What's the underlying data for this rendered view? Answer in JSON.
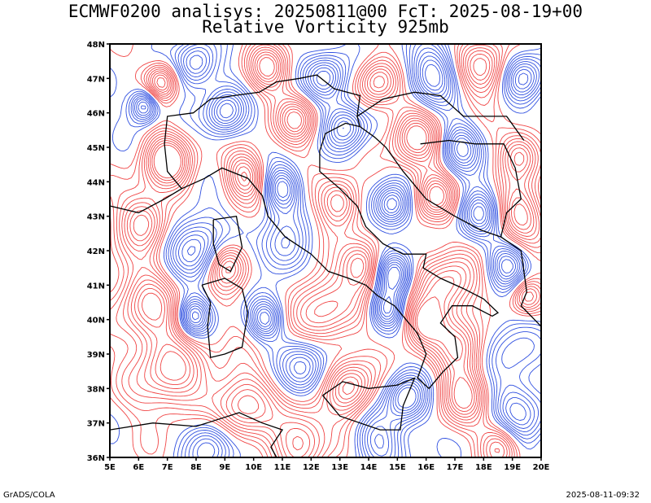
{
  "header": {
    "title_line1": "ECMWF0200 analisys: 20250811@00 FcT: 2025-08-19+00",
    "title_line2": "Relative Vorticity 925mb"
  },
  "map": {
    "lon_labels": [
      "5E",
      "6E",
      "7E",
      "8E",
      "9E",
      "10E",
      "11E",
      "12E",
      "13E",
      "14E",
      "15E",
      "16E",
      "17E",
      "18E",
      "19E",
      "20E"
    ],
    "lat_labels": [
      "36N",
      "37N",
      "38N",
      "39N",
      "40N",
      "41N",
      "42N",
      "43N",
      "44N",
      "45N",
      "46N",
      "47N",
      "48N"
    ],
    "lon_range": [
      5,
      20
    ],
    "lat_range": [
      36,
      48
    ],
    "positive_color": "#f04545",
    "negative_color": "#3050e0",
    "border_color": "#000000"
  },
  "footer": {
    "left": "GrADS/COLA",
    "right": "2025-08-11-09:32"
  }
}
